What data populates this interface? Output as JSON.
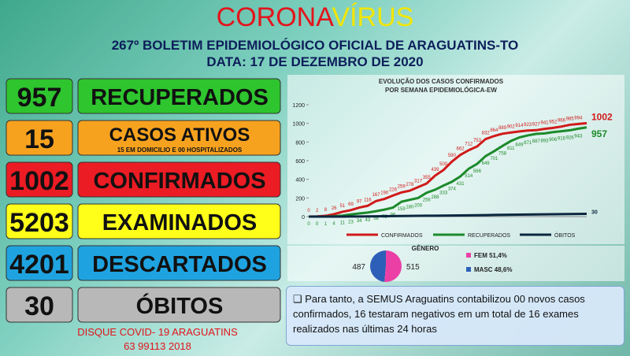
{
  "header": {
    "title_part1": "CORONA",
    "title_part2": "VÍRUS",
    "line1": "267º BOLETIM EPIDEMIOLÓGICO OFICIAL DE ARAGUATINS-TO",
    "line2": "DATA: 17  DE DEZEMBRO DE 2020"
  },
  "stats": [
    {
      "value": 957,
      "label": "RECUPERADOS",
      "color": "#2ec52e"
    },
    {
      "value": 15,
      "label": "CASOS ATIVOS",
      "note": "15 EM DOMICILIO E 00 HOSPITALIZADOS",
      "color": "#f7a21f"
    },
    {
      "value": 1002,
      "label": "CONFIRMADOS",
      "color": "#ec1c24"
    },
    {
      "value": 5203,
      "label": "EXAMINADOS",
      "color": "#ffff1a"
    },
    {
      "value": 4201,
      "label": "DESCARTADOS",
      "color": "#1fa3e0"
    },
    {
      "value": 30,
      "label": "ÓBITOS",
      "color": "#b8b8b8"
    }
  ],
  "hotline": {
    "line1": "DISQUE COVID- 19 ARAGUATINS",
    "line2": "63 99113 2018"
  },
  "chart_data": [
    {
      "type": "line",
      "title": "EVOLUÇÃO DOS CASOS CONFIRMADOS",
      "subtitle": "POR SEMANA EPIDEMIOLÓGICA-EW",
      "ylim": [
        0,
        1200
      ],
      "yticks": [
        0,
        200,
        400,
        600,
        800,
        1000,
        1200
      ],
      "series": [
        {
          "name": "CONFIRMADOS",
          "color": "#d11a1a",
          "values": [
            0,
            2,
            8,
            26,
            51,
            69,
            97,
            116,
            167,
            190,
            226,
            259,
            278,
            317,
            355,
            439,
            500,
            590,
            662,
            712,
            753,
            832,
            864,
            889,
            902,
            914,
            923,
            927,
            941,
            952,
            966,
            985,
            994,
            1002
          ]
        },
        {
          "name": "RECUPERADOS",
          "color": "#1c8a2a",
          "values": [
            0,
            0,
            1,
            4,
            11,
            23,
            34,
            43,
            58,
            75,
            96,
            159,
            180,
            200,
            256,
            288,
            333,
            374,
            431,
            514,
            566,
            649,
            701,
            758,
            811,
            849,
            871,
            887,
            893,
            906,
            916,
            926,
            943,
            957
          ]
        },
        {
          "name": "ÓBITOS",
          "color": "#0b2740",
          "values": [
            0,
            0,
            0,
            0,
            0,
            1,
            1,
            2,
            3,
            4,
            5,
            6,
            7,
            8,
            9,
            10,
            11,
            12,
            13,
            14,
            15,
            16,
            18,
            19,
            20,
            21,
            22,
            23,
            24,
            25,
            26,
            27,
            29,
            30
          ]
        }
      ]
    },
    {
      "type": "pie",
      "title": "GÊNERO",
      "values": [
        487,
        515
      ],
      "colors": [
        "#2e5fb8",
        "#ec3fa6"
      ],
      "legend": [
        {
          "label": "FEM 51,4%",
          "color": "#ec3fa6"
        },
        {
          "label": "MASC 48,6%",
          "color": "#2e5fb8"
        }
      ]
    }
  ],
  "note": "❑ Para tanto, a SEMUS Araguatins contabilizou 00 novos casos confirmados, 16 testaram negativos em um total de 16 exames realizados nas últimas 24 horas"
}
